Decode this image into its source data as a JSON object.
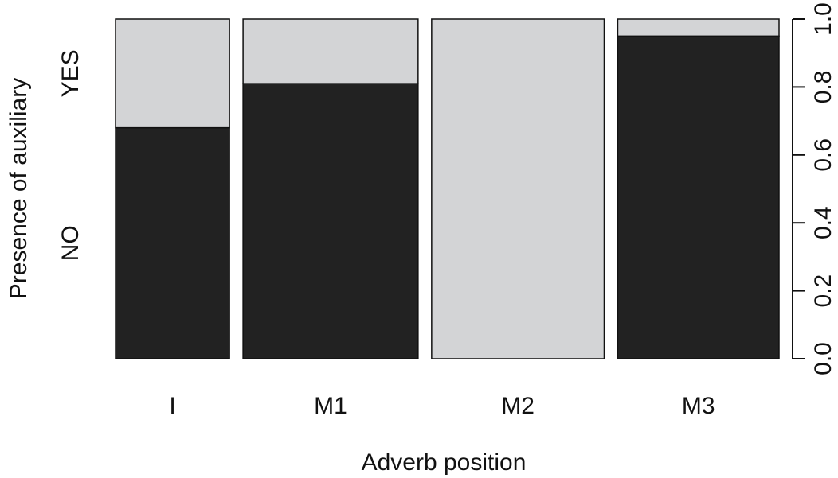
{
  "chart_data": {
    "type": "spineplot",
    "x_label": "Adverb position",
    "y_label": "Presence of auxiliary",
    "categories": [
      "I",
      "M1",
      "M2",
      "M3"
    ],
    "widths": [
      0.183,
      0.281,
      0.277,
      0.259
    ],
    "series": [
      {
        "name": "NO",
        "color": "#222222",
        "values": [
          0.68,
          0.81,
          0,
          0.95
        ]
      },
      {
        "name": "YES",
        "color": "#d3d4d6",
        "values": [
          0.32,
          0.19,
          1.0,
          0.05
        ]
      }
    ],
    "ylim": [
      0,
      1.0
    ],
    "yticks": [
      {
        "value": 0,
        "label": "0.0"
      },
      {
        "value": 0.2,
        "label": "0.2"
      },
      {
        "value": 0.4,
        "label": "0.4"
      },
      {
        "value": 0.6,
        "label": "0.6"
      },
      {
        "value": 0.8,
        "label": "0.8"
      },
      {
        "value": 1.0,
        "label": "1.0"
      }
    ]
  }
}
